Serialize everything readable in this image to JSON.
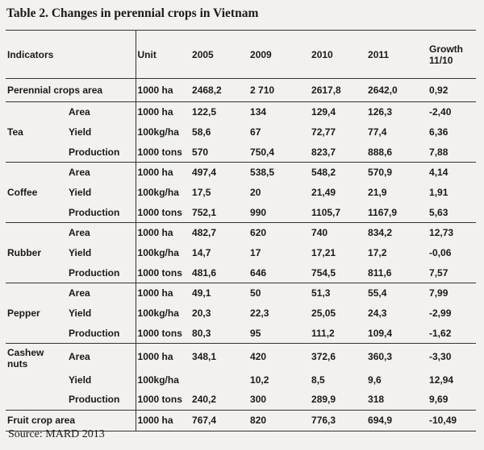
{
  "title": "Table 2. Changes in perennial crops in Vietnam",
  "source": "Source: MARD 2013",
  "header": {
    "indicators": "Indicators",
    "unit": "Unit",
    "y2005": "2005",
    "y2009": "2009",
    "y2010": "2010",
    "y2011": "2011",
    "growth_line1": "Growth",
    "growth_line2": "11/10"
  },
  "perennial": {
    "label": "Perennial crops area",
    "unit": "1000 ha",
    "v2005": "2468,2",
    "v2009": "2 710",
    "v2010": "2617,8",
    "v2011": "2642,0",
    "growth": "0,92"
  },
  "groups": [
    {
      "name": "Tea",
      "rows": [
        {
          "sub": "Area",
          "unit": "1000 ha",
          "v2005": "122,5",
          "v2009": "134",
          "v2010": "129,4",
          "v2011": "126,3",
          "growth": "-2,40"
        },
        {
          "sub": "Yield",
          "unit": "100kg/ha",
          "v2005": "58,6",
          "v2009": "67",
          "v2010": "72,77",
          "v2011": "77,4",
          "growth": "6,36"
        },
        {
          "sub": "Production",
          "unit": "1000 tons",
          "v2005": "570",
          "v2009": "750,4",
          "v2010": "823,7",
          "v2011": "888,6",
          "growth": "7,88"
        }
      ]
    },
    {
      "name": "Coffee",
      "rows": [
        {
          "sub": "Area",
          "unit": "1000 ha",
          "v2005": "497,4",
          "v2009": "538,5",
          "v2010": "548,2",
          "v2011": "570,9",
          "growth": "4,14"
        },
        {
          "sub": "Yield",
          "unit": "100kg/ha",
          "v2005": "17,5",
          "v2009": "20",
          "v2010": "21,49",
          "v2011": "21,9",
          "growth": "1,91"
        },
        {
          "sub": "Production",
          "unit": "1000 tons",
          "v2005": "752,1",
          "v2009": "990",
          "v2010": "1105,7",
          "v2011": "1167,9",
          "growth": "5,63"
        }
      ]
    },
    {
      "name": "Rubber",
      "rows": [
        {
          "sub": "Area",
          "unit": "1000 ha",
          "v2005": "482,7",
          "v2009": "620",
          "v2010": "740",
          "v2011": "834,2",
          "growth": "12,73"
        },
        {
          "sub": "Yield",
          "unit": "100kg/ha",
          "v2005": "14,7",
          "v2009": "17",
          "v2010": "17,21",
          "v2011": "17,2",
          "growth": "-0,06"
        },
        {
          "sub": "Production",
          "unit": "1000 tons",
          "v2005": "481,6",
          "v2009": "646",
          "v2010": "754,5",
          "v2011": "811,6",
          "growth": "7,57"
        }
      ]
    },
    {
      "name": "Pepper",
      "rows": [
        {
          "sub": "Area",
          "unit": "1000 ha",
          "v2005": "49,1",
          "v2009": "50",
          "v2010": "51,3",
          "v2011": "55,4",
          "growth": "7,99"
        },
        {
          "sub": "Yield",
          "unit": "100kg/ha",
          "v2005": "20,3",
          "v2009": "22,3",
          "v2010": "25,05",
          "v2011": "24,3",
          "growth": "-2,99"
        },
        {
          "sub": "Production",
          "unit": "1000 tons",
          "v2005": "80,3",
          "v2009": "95",
          "v2010": "111,2",
          "v2011": "109,4",
          "growth": "-1,62"
        }
      ]
    },
    {
      "name_line1": "Cashew",
      "name_line2": "nuts",
      "rows": [
        {
          "sub": "Area",
          "unit": "1000 ha",
          "v2005": "348,1",
          "v2009": "420",
          "v2010": "372,6",
          "v2011": "360,3",
          "growth": "-3,30"
        },
        {
          "sub": "Yield",
          "unit": "100kg/ha",
          "v2005": "",
          "v2009": "10,2",
          "v2010": "8,5",
          "v2011": "9,6",
          "growth": "12,94"
        },
        {
          "sub": "Production",
          "unit": "1000 tons",
          "v2005": "240,2",
          "v2009": "300",
          "v2010": "289,9",
          "v2011": "318",
          "growth": "9,69"
        }
      ]
    }
  ],
  "fruit": {
    "label": "Fruit crop area",
    "unit": "1000 ha",
    "v2005": "767,4",
    "v2009": "820",
    "v2010": "776,3",
    "v2011": "694,9",
    "growth": "-10,49"
  }
}
